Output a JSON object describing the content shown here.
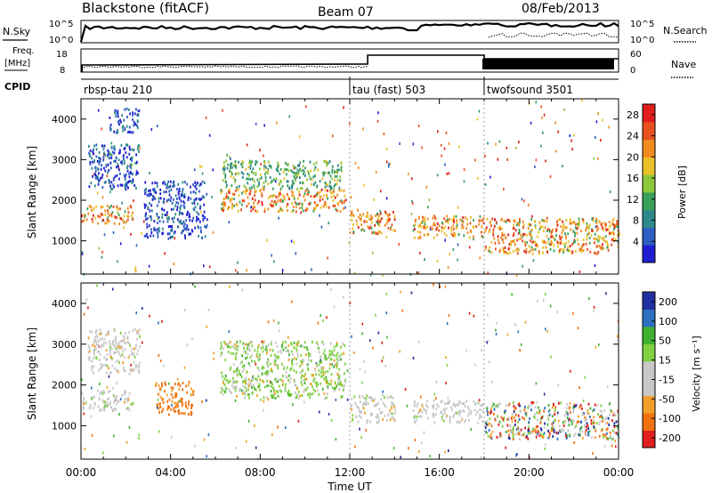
{
  "header": {
    "station": "Blackstone (fitACF)",
    "beam": "Beam 07",
    "date": "08/Feb/2013"
  },
  "strip_labels": {
    "nsky": "N.Sky",
    "nsky_hi": "10^5",
    "nsky_lo": "10^0",
    "nsearch": "N.Search",
    "nsearch_hi": "10^5",
    "nsearch_lo": "10^0",
    "freq": "Freq.",
    "freq_unit": "[MHz]",
    "freq_hi": "18",
    "freq_lo": "8",
    "nave": "Nave",
    "nave_hi": "60",
    "nave_lo": "0",
    "cpid": "CPID"
  },
  "cpid_segments": [
    {
      "start_hour": 0,
      "label": "rbsp-tau 210"
    },
    {
      "start_hour": 12,
      "label": "tau (fast) 503"
    },
    {
      "start_hour": 18,
      "label": "twofsound 3501"
    }
  ],
  "colors": {
    "power_scale": [
      "#1e1ed0",
      "#2e5ec2",
      "#2e8a8a",
      "#3aa05a",
      "#8cc83a",
      "#e8c028",
      "#f08c1e",
      "#e8501e",
      "#e01e1e"
    ],
    "velocity_scale": [
      "#e01e1e",
      "#f07010",
      "#f0a028",
      "#c8c8c8",
      "#c8c8c8",
      "#80d040",
      "#40b030",
      "#2e70c0",
      "#2030a0"
    ]
  },
  "chart_data": [
    {
      "type": "heatmap",
      "name": "Power",
      "ylabel": "Slant Range [km]",
      "yticks": [
        1000,
        2000,
        3000,
        4000
      ],
      "ylim": [
        180,
        4500
      ],
      "xlim": [
        0,
        24
      ],
      "colorbar_label": "Power [dB]",
      "colorbar_ticks": [
        4,
        8,
        12,
        16,
        20,
        24,
        28
      ],
      "colorbar_range": [
        0,
        30
      ],
      "echo_bands": [
        {
          "hour_start": 0.0,
          "hour_end": 2.3,
          "range_start": 1450,
          "range_end": 1900,
          "level": "high"
        },
        {
          "hour_start": 0.3,
          "hour_end": 2.6,
          "range_start": 2300,
          "range_end": 3400,
          "level": "low"
        },
        {
          "hour_start": 1.2,
          "hour_end": 2.6,
          "range_start": 3700,
          "range_end": 4300,
          "level": "low"
        },
        {
          "hour_start": 2.8,
          "hour_end": 5.6,
          "range_start": 1100,
          "range_end": 2500,
          "level": "low"
        },
        {
          "hour_start": 6.2,
          "hour_end": 11.8,
          "range_start": 1750,
          "range_end": 2300,
          "level": "high"
        },
        {
          "hour_start": 6.3,
          "hour_end": 11.6,
          "range_start": 2300,
          "range_end": 3000,
          "level": "mid"
        },
        {
          "hour_start": 12.0,
          "hour_end": 14.0,
          "range_start": 1200,
          "range_end": 1800,
          "level": "high"
        },
        {
          "hour_start": 14.8,
          "hour_end": 18.0,
          "range_start": 1100,
          "range_end": 1650,
          "level": "high"
        },
        {
          "hour_start": 18.0,
          "hour_end": 24.0,
          "range_start": 700,
          "range_end": 1600,
          "level": "high"
        }
      ]
    },
    {
      "type": "heatmap",
      "name": "Velocity",
      "ylabel": "Slant Range [km]",
      "xlabel": "Time UT",
      "yticks": [
        1000,
        2000,
        3000,
        4000
      ],
      "xticks": [
        "00:00",
        "04:00",
        "08:00",
        "12:00",
        "16:00",
        "20:00",
        "00:00"
      ],
      "ylim": [
        180,
        4500
      ],
      "xlim": [
        0,
        24
      ],
      "colorbar_label": "Velocity [m s⁻¹]",
      "colorbar_ticks": [
        200,
        100,
        50,
        15,
        -15,
        -50,
        -100,
        -200
      ],
      "echo_bands": [
        {
          "hour_start": 0.0,
          "hour_end": 2.3,
          "range_start": 1400,
          "range_end": 1900,
          "level": "gray"
        },
        {
          "hour_start": 0.3,
          "hour_end": 2.6,
          "range_start": 2300,
          "range_end": 3400,
          "level": "gray"
        },
        {
          "hour_start": 3.3,
          "hour_end": 5.0,
          "range_start": 1300,
          "range_end": 2100,
          "level": "orange"
        },
        {
          "hour_start": 6.2,
          "hour_end": 11.8,
          "range_start": 1700,
          "range_end": 3100,
          "level": "green"
        },
        {
          "hour_start": 12.0,
          "hour_end": 14.0,
          "range_start": 1100,
          "range_end": 1800,
          "level": "gray"
        },
        {
          "hour_start": 14.8,
          "hour_end": 18.0,
          "range_start": 1100,
          "range_end": 1650,
          "level": "gray"
        },
        {
          "hour_start": 18.0,
          "hour_end": 24.0,
          "range_start": 700,
          "range_end": 1600,
          "level": "mixed"
        }
      ]
    }
  ]
}
